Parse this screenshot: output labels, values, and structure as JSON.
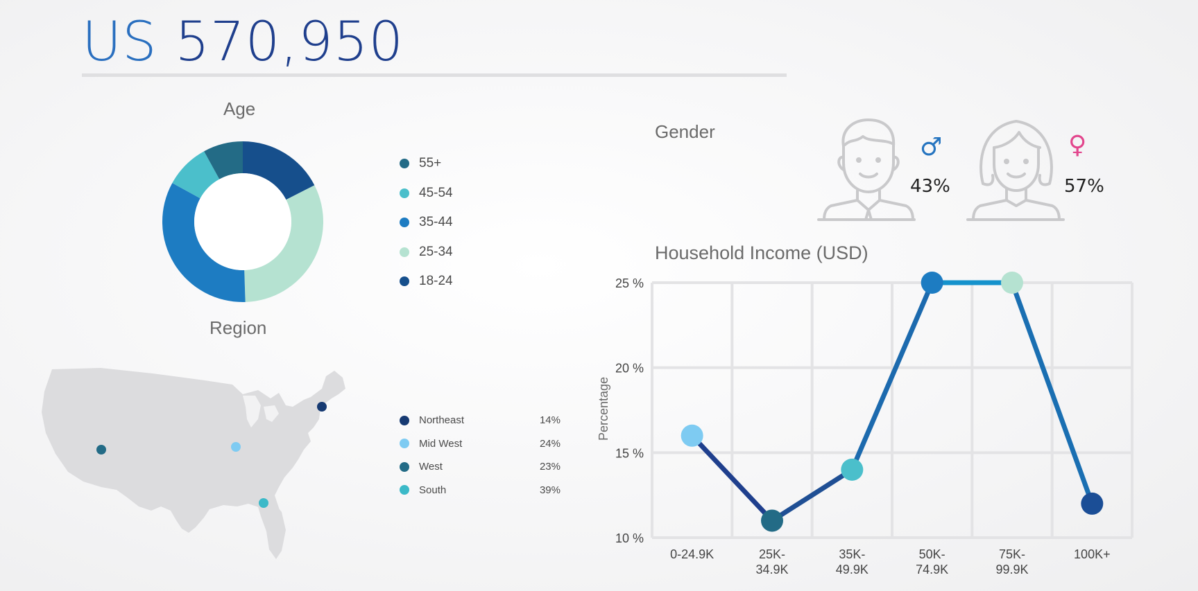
{
  "header": {
    "prefix": "US",
    "value": "570,950"
  },
  "age": {
    "title": "Age",
    "legend": [
      {
        "label": "55+",
        "color": "#236b86"
      },
      {
        "label": "45-54",
        "color": "#4bbfcb"
      },
      {
        "label": "35-44",
        "color": "#1d7cc2"
      },
      {
        "label": "25-34",
        "color": "#b5e2d1"
      },
      {
        "label": "18-24",
        "color": "#164f8c"
      }
    ]
  },
  "region": {
    "title": "Region",
    "items": [
      {
        "label": "Northeast",
        "value": "14%",
        "color": "#163a72"
      },
      {
        "label": "Mid West",
        "value": "24%",
        "color": "#7ecbf2"
      },
      {
        "label": "West",
        "value": "23%",
        "color": "#236b86"
      },
      {
        "label": "South",
        "value": "39%",
        "color": "#3bb9c8"
      }
    ]
  },
  "gender": {
    "title": "Gender",
    "male": {
      "pct": "43%",
      "symbol": "♂",
      "color": "#2574c0",
      "icon": "male-avatar-icon"
    },
    "female": {
      "pct": "57%",
      "symbol": "♀",
      "color": "#e2468d",
      "icon": "female-avatar-icon"
    }
  },
  "chart_data": [
    {
      "type": "pie",
      "title": "Age",
      "categories": [
        "18-24",
        "25-34",
        "35-44",
        "45-54",
        "55+"
      ],
      "values": [
        17.5,
        32,
        33.5,
        9,
        8
      ],
      "colors": [
        "#164f8c",
        "#b5e2d1",
        "#1d7cc2",
        "#4bbfcb",
        "#236b86"
      ],
      "donut": true
    },
    {
      "type": "line",
      "title": "Household Income (USD)",
      "xlabel": "",
      "ylabel": "Percentage",
      "categories": [
        "0-24.9K",
        "25K-\n34.9K",
        "35K-\n49.9K",
        "50K-\n74.9K",
        "75K-\n99.9K",
        "100K+"
      ],
      "values": [
        16,
        11,
        14,
        25,
        25,
        12
      ],
      "point_colors": [
        "#7ecbf2",
        "#236b86",
        "#4bbfcb",
        "#1d7cc2",
        "#b5e2d1",
        "#1b4e96"
      ],
      "ylim": [
        10,
        25
      ],
      "yticks": [
        10,
        15,
        20,
        25
      ],
      "ytick_labels": [
        "10 %",
        "15 %",
        "20 %",
        "25 %"
      ],
      "grid": true
    }
  ]
}
